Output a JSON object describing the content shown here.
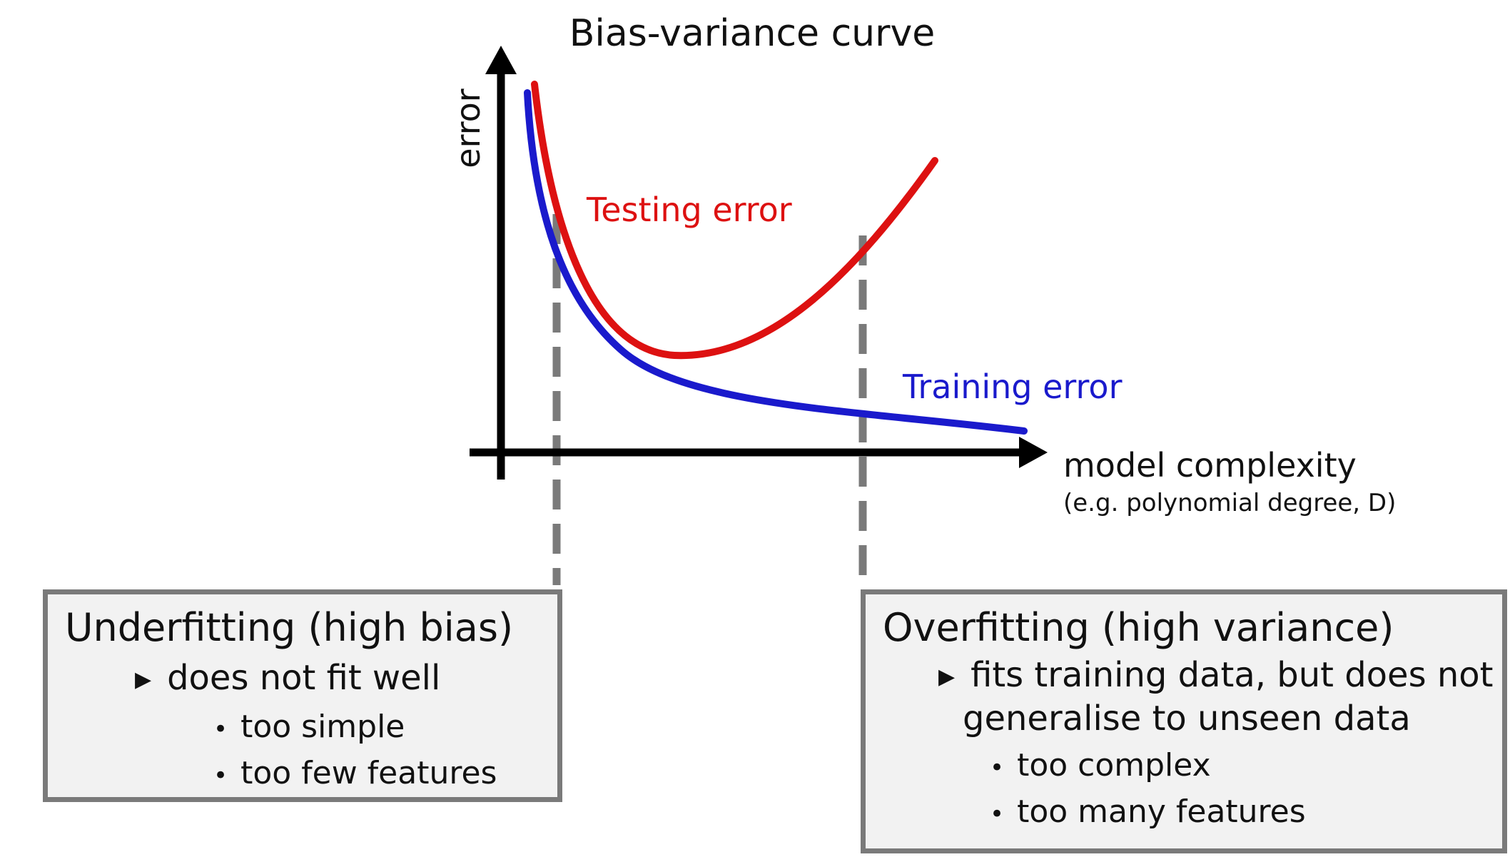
{
  "title": "Bias-variance curve",
  "axes": {
    "y_label": "error",
    "x_label": "model complexity",
    "x_sublabel": "(e.g. polynomial degree, D)"
  },
  "curves": {
    "testing": {
      "label": "Testing error",
      "color": "#dd1111"
    },
    "training": {
      "label": "Training error",
      "color": "#1a1acc"
    }
  },
  "colors": {
    "axis": "#000000",
    "guide": "#7a7a7a",
    "box_border": "#7a7a7a",
    "box_fill": "#f2f2f2"
  },
  "underfitting": {
    "title": "Underfitting (high bias)",
    "point": "does not fit well",
    "details": [
      "too simple",
      "too few features"
    ]
  },
  "overfitting": {
    "title": "Overfitting (high variance)",
    "point_line1": "fits training data, but does not",
    "point_line2": "generalise to unseen data",
    "details": [
      "too complex",
      "too many features"
    ]
  },
  "icons": {
    "bullet_marker": "triangle-right-icon",
    "sub_marker": "dot-icon"
  }
}
